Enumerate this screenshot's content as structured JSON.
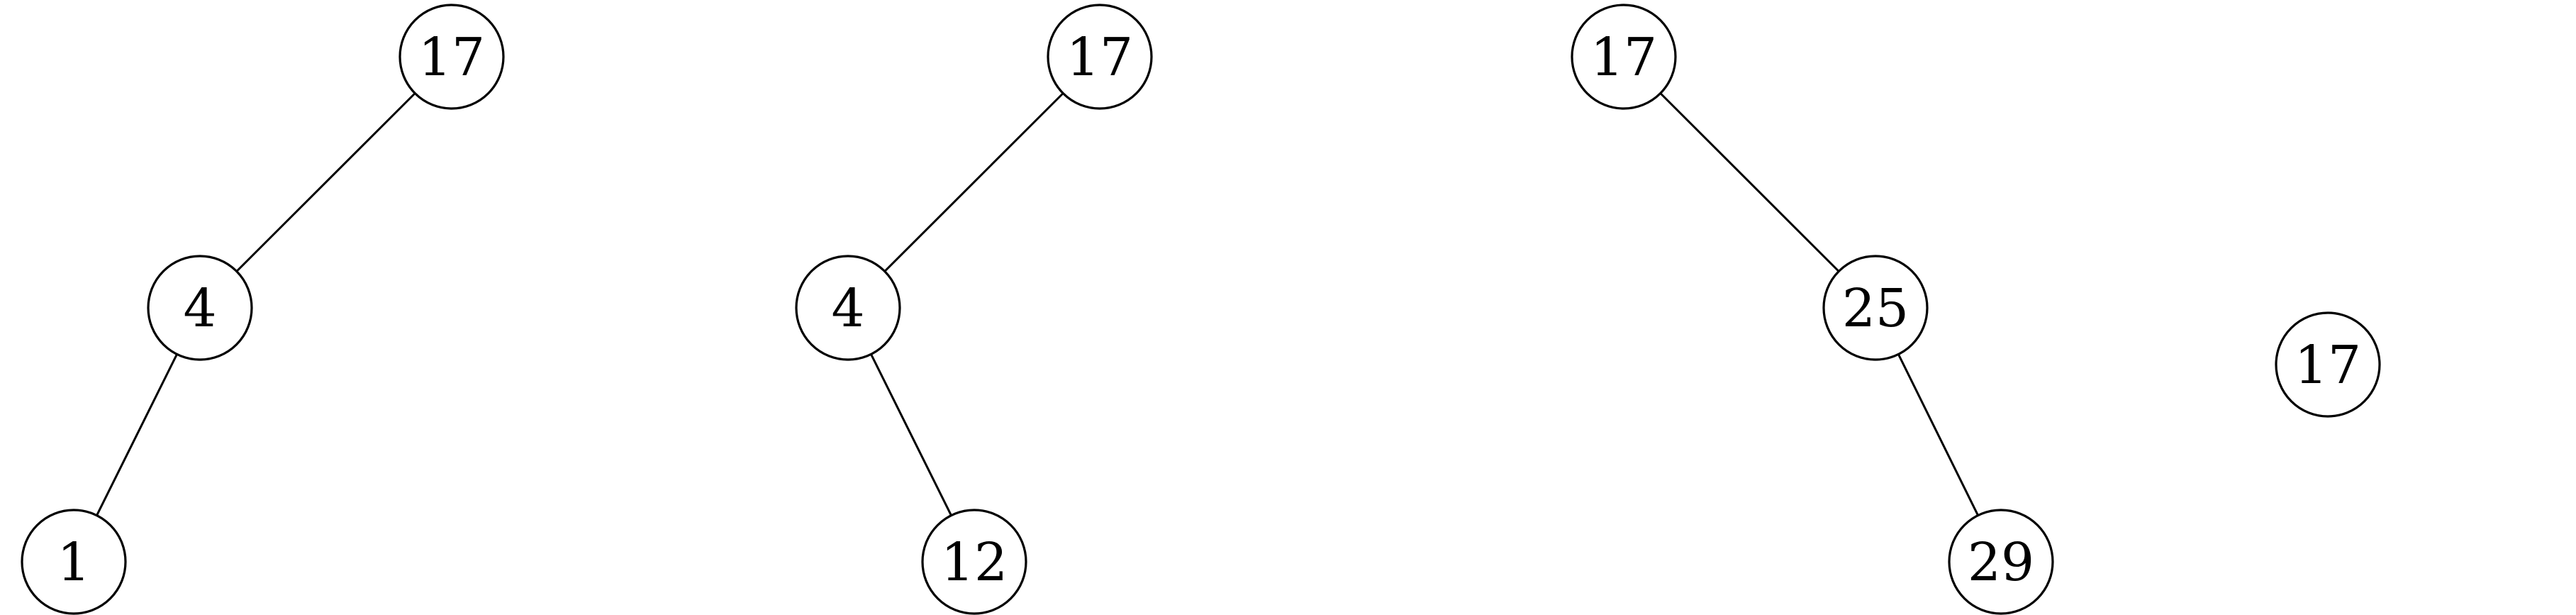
{
  "diagram": {
    "title": "",
    "trees": [
      {
        "name": "tree-1",
        "nodes": [
          {
            "id": "t1-n17",
            "label": "17"
          },
          {
            "id": "t1-n4",
            "label": "4"
          },
          {
            "id": "t1-n1",
            "label": "1"
          }
        ],
        "edges": [
          {
            "from": "t1-n17",
            "to": "t1-n4"
          },
          {
            "from": "t1-n4",
            "to": "t1-n1"
          }
        ]
      },
      {
        "name": "tree-2",
        "nodes": [
          {
            "id": "t2-n17",
            "label": "17"
          },
          {
            "id": "t2-n4",
            "label": "4"
          },
          {
            "id": "t2-n12",
            "label": "12"
          }
        ],
        "edges": [
          {
            "from": "t2-n17",
            "to": "t2-n4"
          },
          {
            "from": "t2-n4",
            "to": "t2-n12"
          }
        ]
      },
      {
        "name": "tree-3",
        "nodes": [
          {
            "id": "t3-n17",
            "label": "17"
          },
          {
            "id": "t3-n25",
            "label": "25"
          },
          {
            "id": "t3-n29",
            "label": "29"
          }
        ],
        "edges": [
          {
            "from": "t3-n17",
            "to": "t3-n25"
          },
          {
            "from": "t3-n25",
            "to": "t3-n29"
          }
        ]
      },
      {
        "name": "tree-4",
        "nodes": [
          {
            "id": "t4-n17",
            "label": "17"
          }
        ],
        "edges": []
      }
    ]
  }
}
